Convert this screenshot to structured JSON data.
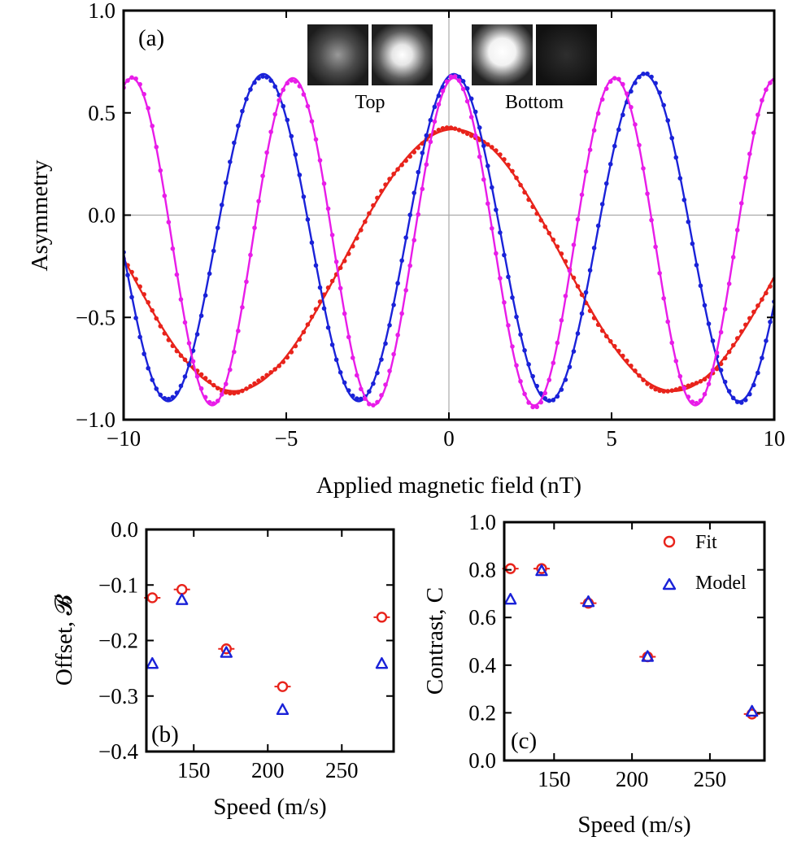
{
  "colors": {
    "red": "#e8231b",
    "blue": "#1a22d8",
    "magenta": "#e81ce8",
    "fit_marker": "#e8231b",
    "model_marker": "#1a22d8"
  },
  "chart_data": [
    {
      "id": "a",
      "type": "line",
      "panel_label": "(a)",
      "xlabel": "Applied magnetic field (nT)",
      "ylabel": "Asymmetry",
      "xlim": [
        -10,
        10
      ],
      "ylim": [
        -1.0,
        1.0
      ],
      "xticks": [
        -10,
        -5,
        0,
        5,
        10
      ],
      "xtick_labels": [
        "−10",
        "−5",
        "0",
        "5",
        "10"
      ],
      "yticks": [
        -1.0,
        -0.5,
        0.0,
        0.5,
        1.0
      ],
      "ytick_labels": [
        "−1.0",
        "−0.5",
        "0.0",
        "0.5",
        "1.0"
      ],
      "zero_lines": true,
      "inset_labels": [
        "Top",
        "Bottom"
      ],
      "series": [
        {
          "color_key": "red",
          "offset": -0.22,
          "amplitude": 0.64,
          "period": 13.5,
          "phase": 0.15,
          "points": 160
        },
        {
          "color_key": "blue",
          "offset": -0.11,
          "amplitude": 0.8,
          "period": 5.85,
          "phase": 0.15,
          "points": 160
        },
        {
          "color_key": "magenta",
          "offset": -0.13,
          "amplitude": 0.8,
          "period": 4.95,
          "phase": 0.15,
          "points": 160
        }
      ]
    },
    {
      "id": "b",
      "type": "scatter",
      "panel_label": "(b)",
      "xlabel": "Speed (m/s)",
      "ylabel": "Offset, 𝓑",
      "xlim": [
        118,
        285
      ],
      "ylim": [
        -0.4,
        0.0
      ],
      "xticks": [
        150,
        200,
        250
      ],
      "xtick_labels": [
        "150",
        "200",
        "250"
      ],
      "yticks": [
        -0.4,
        -0.3,
        -0.2,
        -0.1,
        0.0
      ],
      "ytick_labels": [
        "−0.4",
        "−0.3",
        "−0.2",
        "−0.1",
        "0.0"
      ],
      "series": [
        {
          "name": "Fit",
          "marker": "circle",
          "x": [
            122,
            142,
            172,
            210,
            277
          ],
          "y": [
            -0.123,
            -0.108,
            -0.215,
            -0.283,
            -0.158
          ]
        },
        {
          "name": "Model",
          "marker": "triangle",
          "x": [
            122,
            142,
            172,
            210,
            277
          ],
          "y": [
            -0.242,
            -0.127,
            -0.222,
            -0.325,
            -0.242
          ]
        }
      ]
    },
    {
      "id": "c",
      "type": "scatter",
      "panel_label": "(c)",
      "xlabel": "Speed (m/s)",
      "ylabel": "Contrast, C",
      "xlim": [
        118,
        285
      ],
      "ylim": [
        0.0,
        1.0
      ],
      "xticks": [
        150,
        200,
        250
      ],
      "xtick_labels": [
        "150",
        "200",
        "250"
      ],
      "yticks": [
        0.0,
        0.2,
        0.4,
        0.6,
        0.8,
        1.0
      ],
      "ytick_labels": [
        "0.0",
        "0.2",
        "0.4",
        "0.6",
        "0.8",
        "1.0"
      ],
      "legend": {
        "placement": "top-right",
        "entries": [
          "Fit",
          "Model"
        ]
      },
      "series": [
        {
          "name": "Fit",
          "marker": "circle",
          "x": [
            122,
            142,
            172,
            210,
            277
          ],
          "y": [
            0.805,
            0.805,
            0.66,
            0.435,
            0.195
          ]
        },
        {
          "name": "Model",
          "marker": "triangle",
          "x": [
            122,
            142,
            172,
            210,
            277
          ],
          "y": [
            0.675,
            0.795,
            0.665,
            0.435,
            0.205
          ]
        }
      ]
    }
  ]
}
